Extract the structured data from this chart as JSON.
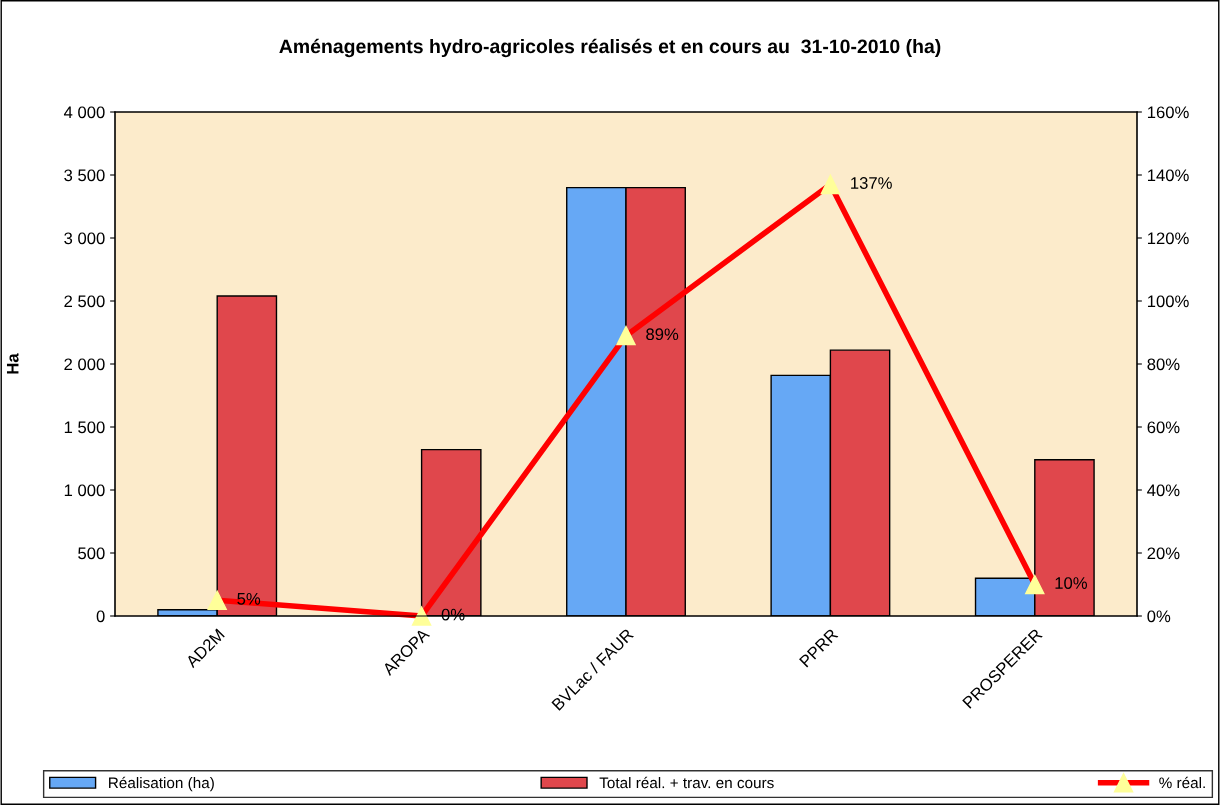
{
  "chart_data": {
    "type": "bar",
    "title": "Aménagements hydro-agricoles réalisés et en cours au  31-10-2010 (ha)",
    "ylabel": "Ha",
    "categories": [
      "AD2M",
      "AROPA",
      "BVLac / FAUR",
      "PPRR",
      "PROSPERER"
    ],
    "series": [
      {
        "name": "Réalisation (ha)",
        "color": "#66a8f5",
        "values": [
          50,
          0,
          3400,
          1910,
          300
        ]
      },
      {
        "name": "Total réal. + trav. en cours",
        "color": "#e0474c",
        "values": [
          2540,
          1320,
          3400,
          2110,
          1240
        ]
      },
      {
        "name": "% réal.",
        "type": "line",
        "axis": "y2",
        "color": "#ff0000",
        "marker": "triangle",
        "values": [
          5,
          0,
          89,
          137,
          10
        ],
        "value_labels": [
          "5%",
          "0%",
          "89%",
          "137%",
          "10%"
        ]
      }
    ],
    "ylim": [
      0,
      4000
    ],
    "yticks": [
      {
        "value": 0,
        "label": "0"
      },
      {
        "value": 500,
        "label": "500"
      },
      {
        "value": 1000,
        "label": "1 000"
      },
      {
        "value": 1500,
        "label": "1 500"
      },
      {
        "value": 2000,
        "label": "2 000"
      },
      {
        "value": 2500,
        "label": "2 500"
      },
      {
        "value": 3000,
        "label": "3 000"
      },
      {
        "value": 3500,
        "label": "3 500"
      },
      {
        "value": 4000,
        "label": "4 000"
      }
    ],
    "y2lim": [
      0,
      160
    ],
    "y2ticks": [
      {
        "value": 0,
        "label": "0%"
      },
      {
        "value": 20,
        "label": "20%"
      },
      {
        "value": 40,
        "label": "40%"
      },
      {
        "value": 60,
        "label": "60%"
      },
      {
        "value": 80,
        "label": "80%"
      },
      {
        "value": 100,
        "label": "100%"
      },
      {
        "value": 120,
        "label": "120%"
      },
      {
        "value": 140,
        "label": "140%"
      },
      {
        "value": 160,
        "label": "160%"
      }
    ],
    "grid": false,
    "legend": "bottom"
  }
}
